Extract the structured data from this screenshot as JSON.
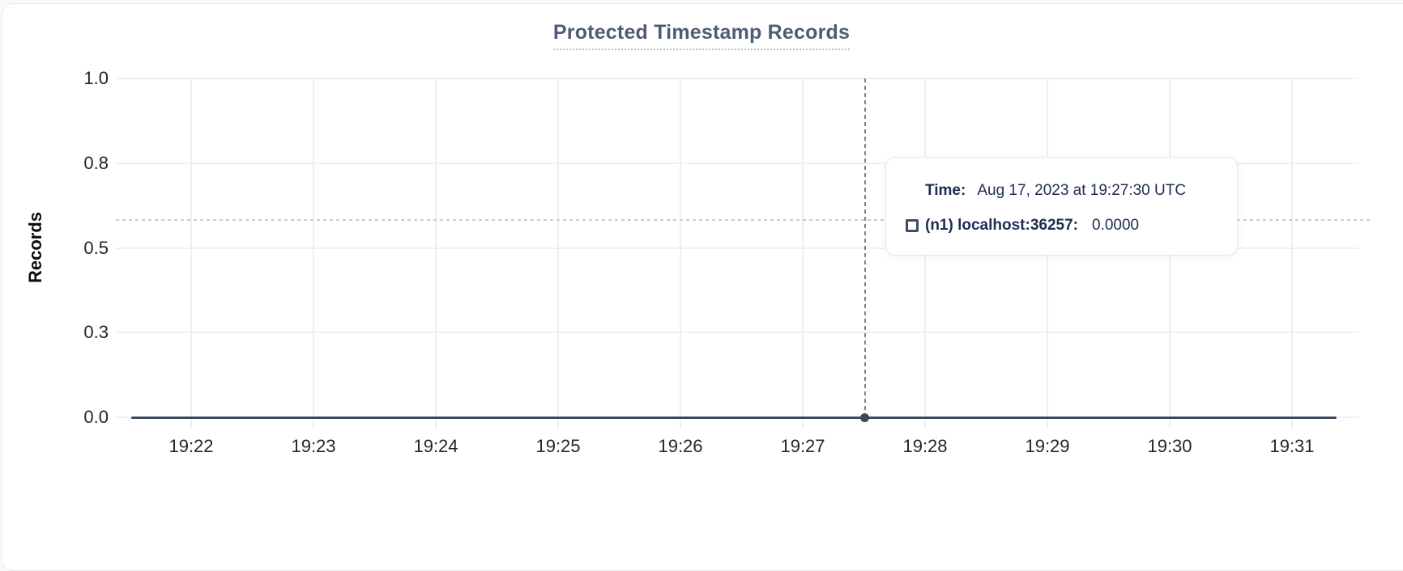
{
  "title": "Protected Timestamp Records",
  "tooltip": {
    "time_label": "Time:",
    "time_value": "Aug 17, 2023 at 19:27:30 UTC",
    "series_label": "(n1) localhost:36257:",
    "series_value": "0.0000"
  },
  "colors": {
    "series_line": "#3b495e",
    "title_text": "#4e5c75",
    "tooltip_text": "#1d2c50",
    "gridline": "#f0f0f2",
    "crosshair_vertical": "#78828f",
    "crosshair_horizontal": "#c6ccd5",
    "card_border": "#e8e9ed"
  },
  "chart_data": {
    "type": "line",
    "title": "Protected Timestamp Records",
    "xlabel": "",
    "ylabel": "Records",
    "x_tick_labels": [
      "19:22",
      "19:23",
      "19:24",
      "19:25",
      "19:26",
      "19:27",
      "19:28",
      "19:29",
      "19:30",
      "19:31"
    ],
    "y_ticks": [
      {
        "label": "1.0",
        "value": 1.0
      },
      {
        "label": "0.8",
        "value": 0.75
      },
      {
        "label": "0.5",
        "value": 0.5
      },
      {
        "label": "0.3",
        "value": 0.25
      },
      {
        "label": "0.0",
        "value": 0.0
      }
    ],
    "ylim": [
      0,
      1.0
    ],
    "grid": true,
    "legend_position": "tooltip-only",
    "series": [
      {
        "name": "(n1) localhost:36257",
        "x": [
          "19:22",
          "19:23",
          "19:24",
          "19:25",
          "19:26",
          "19:27",
          "19:28",
          "19:29",
          "19:30",
          "19:31"
        ],
        "values": [
          0,
          0,
          0,
          0,
          0,
          0,
          0,
          0,
          0,
          0
        ]
      }
    ],
    "hover_point": {
      "time": "Aug 17, 2023 at 19:27:30 UTC",
      "x_label": "19:27:30",
      "value": 0.0
    }
  }
}
